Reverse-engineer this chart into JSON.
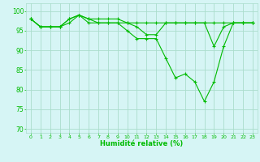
{
  "title": "",
  "xlabel": "Humidité relative (%)",
  "ylabel": "",
  "background_color": "#d6f5f5",
  "grid_color": "#aaddcc",
  "line_color": "#00bb00",
  "marker_color": "#00bb00",
  "xlim": [
    -0.5,
    23.5
  ],
  "ylim": [
    69,
    102
  ],
  "yticks": [
    70,
    75,
    80,
    85,
    90,
    95,
    100
  ],
  "xticks": [
    0,
    1,
    2,
    3,
    4,
    5,
    6,
    7,
    8,
    9,
    10,
    11,
    12,
    13,
    14,
    15,
    16,
    17,
    18,
    19,
    20,
    21,
    22,
    23
  ],
  "series": [
    [
      98,
      96,
      96,
      96,
      98,
      99,
      97,
      97,
      97,
      97,
      97,
      97,
      97,
      97,
      97,
      97,
      97,
      97,
      97,
      97,
      97,
      97,
      97,
      97
    ],
    [
      98,
      96,
      96,
      96,
      98,
      99,
      98,
      98,
      98,
      98,
      97,
      96,
      94,
      94,
      97,
      97,
      97,
      97,
      97,
      91,
      96,
      97,
      97,
      97
    ],
    [
      98,
      96,
      96,
      96,
      97,
      99,
      98,
      97,
      97,
      97,
      95,
      93,
      93,
      93,
      88,
      83,
      84,
      82,
      77,
      82,
      91,
      97,
      97,
      97
    ]
  ]
}
